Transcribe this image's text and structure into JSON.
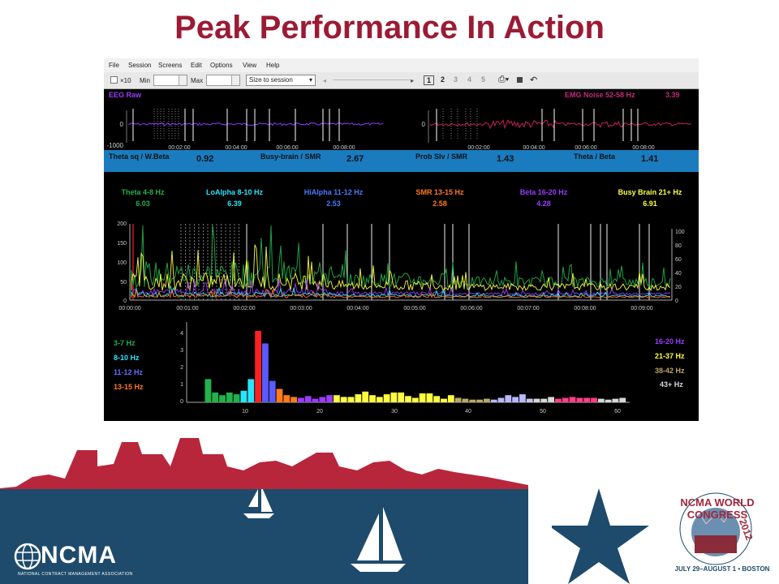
{
  "slide": {
    "title": "Peak Performance In Action"
  },
  "menubar": {
    "items": [
      "File",
      "Session",
      "Screens",
      "Edit",
      "Options",
      "View",
      "Help"
    ]
  },
  "toolbar": {
    "x10": "×10",
    "min_label": "Min",
    "max_label": "Max",
    "zoom_select": "Size to session",
    "pages": [
      "1",
      "2",
      "3",
      "4",
      "5"
    ]
  },
  "raw_panel": {
    "left_label": "EEG Raw",
    "right_label": "EMG Noise 52-58 Hz",
    "right_value": "3.39",
    "y_ticks": [
      "0",
      "-1000"
    ],
    "left_times": [
      "00:02:00",
      "00:04:00",
      "00:06:00",
      "00:08:00"
    ],
    "right_times": [
      "00:02:00",
      "00:04:00",
      "00:06:00",
      "00:08:00"
    ]
  },
  "ratios": [
    {
      "label": "Theta sq / W.Beta",
      "value": "0.92"
    },
    {
      "label": "Busy-brain / SMR",
      "value": "2.67"
    },
    {
      "label": "Prob Slv / SMR",
      "value": "1.43"
    },
    {
      "label": "Theta / Beta",
      "value": "1.41"
    }
  ],
  "bands": [
    {
      "label": "Theta 4-8 Hz",
      "value": "6.03",
      "color": "#22b14c"
    },
    {
      "label": "LoAlpha 8-10 Hz",
      "value": "6.39",
      "color": "#29e4ff"
    },
    {
      "label": "HiAlpha 11-12 Hz",
      "value": "2.53",
      "color": "#4a7bff"
    },
    {
      "label": "SMR 13-15 Hz",
      "value": "2.58",
      "color": "#ff7a1a"
    },
    {
      "label": "Beta 16-20 Hz",
      "value": "4.28",
      "color": "#9b3cff"
    },
    {
      "label": "Busy Brain 21+ Hz",
      "value": "6.91",
      "color": "#ffff40"
    }
  ],
  "trend": {
    "left_ticks": [
      "200",
      "150",
      "100",
      "50",
      "0"
    ],
    "right_ticks": [
      "100",
      "80",
      "60",
      "40",
      "20",
      "0"
    ],
    "times": [
      "00:00:00",
      "00:01:00",
      "00:02:00",
      "00:03:00",
      "00:04:00",
      "00:05:00",
      "00:06:00",
      "00:07:00",
      "00:08:00",
      "00:09:00"
    ]
  },
  "spectrum": {
    "left_legend": [
      {
        "label": "3-7 Hz",
        "color": "#22b14c"
      },
      {
        "label": "8-10 Hz",
        "color": "#29e4ff"
      },
      {
        "label": "11-12 Hz",
        "color": "#6a6aff"
      },
      {
        "label": "13-15 Hz",
        "color": "#ff7a1a"
      }
    ],
    "right_legend": [
      {
        "label": "16-20 Hz",
        "color": "#9b3cff"
      },
      {
        "label": "21-37 Hz",
        "color": "#ffff40"
      },
      {
        "label": "38-42 Hz",
        "color": "#b8a86a"
      },
      {
        "label": "43+ Hz",
        "color": "#d8d8d8"
      }
    ],
    "y_ticks": [
      "4",
      "3",
      "2",
      "1",
      "0"
    ],
    "x_ticks": [
      "10",
      "20",
      "30",
      "40",
      "50",
      "60"
    ]
  },
  "chart_data": {
    "type": "bar",
    "x": [
      3,
      4,
      5,
      6,
      7,
      8,
      9,
      10,
      11,
      12,
      13,
      14,
      15,
      16,
      17,
      18,
      19,
      20,
      21,
      22,
      23,
      24,
      25,
      26,
      27,
      28,
      29,
      30,
      31,
      32,
      33,
      34,
      35,
      36,
      37,
      38,
      39,
      40,
      41,
      42,
      43,
      44,
      45,
      46,
      47,
      48,
      49,
      50,
      51,
      52,
      53,
      54,
      55,
      56,
      57,
      58,
      59,
      60,
      61
    ],
    "values": [
      1.3,
      0.55,
      0.4,
      0.55,
      0.45,
      0.65,
      1.3,
      4.0,
      3.3,
      1.2,
      0.75,
      0.4,
      0.3,
      0.25,
      0.35,
      0.2,
      0.3,
      0.4,
      0.4,
      0.3,
      0.3,
      0.45,
      0.6,
      0.4,
      0.3,
      0.45,
      0.55,
      0.55,
      0.35,
      0.25,
      0.5,
      0.5,
      0.35,
      0.2,
      0.4,
      0.25,
      0.2,
      0.15,
      0.15,
      0.2,
      0.15,
      0.25,
      0.4,
      0.3,
      0.45,
      0.2,
      0.2,
      0.2,
      0.3,
      0.2,
      0.25,
      0.3,
      0.25,
      0.25,
      0.25,
      0.2,
      0.15,
      0.2,
      0.25
    ],
    "colors": [
      "#22b14c",
      "#22b14c",
      "#22b14c",
      "#22b14c",
      "#22b14c",
      "#29e4ff",
      "#29e4ff",
      "#ff2020",
      "#5a5aff",
      "#5a5aff",
      "#ff7a1a",
      "#ff7a1a",
      "#ff7a1a",
      "#9b3cff",
      "#9b3cff",
      "#9b3cff",
      "#9b3cff",
      "#9b3cff",
      "#ffff40",
      "#ffff40",
      "#ffff40",
      "#ffff40",
      "#ffff40",
      "#ffff40",
      "#ffff40",
      "#ffff40",
      "#ffff40",
      "#ffff40",
      "#ffff40",
      "#ffff40",
      "#ffff40",
      "#ffff40",
      "#ffff40",
      "#ffff40",
      "#ffff40",
      "#b8a86a",
      "#b8a86a",
      "#b8a86a",
      "#b8a86a",
      "#b8a86a",
      "#b8b8ff",
      "#b8b8ff",
      "#b8b8ff",
      "#b8b8ff",
      "#b8b8ff",
      "#c8c8e8",
      "#d8d8d8",
      "#d8d8d8",
      "#d8d8d8",
      "#ff3d8a",
      "#ff3d8a",
      "#ff3d8a",
      "#ff3d8a",
      "#ff3d8a",
      "#ff3d8a",
      "#d8d8d8",
      "#d8d8d8",
      "#d8d8d8",
      "#d8d8d8"
    ],
    "ylim": [
      0,
      4.5
    ],
    "xlim": [
      0,
      62
    ]
  },
  "footer": {
    "org_name": "NCMA",
    "org_full": "NATIONAL CONTRACT MANAGEMENT ASSOCIATION",
    "event_title": "NCMA WORLD CONGRESS",
    "event_year": "2012",
    "event_dates": "JULY 29–AUGUST 1 • BOSTON"
  }
}
